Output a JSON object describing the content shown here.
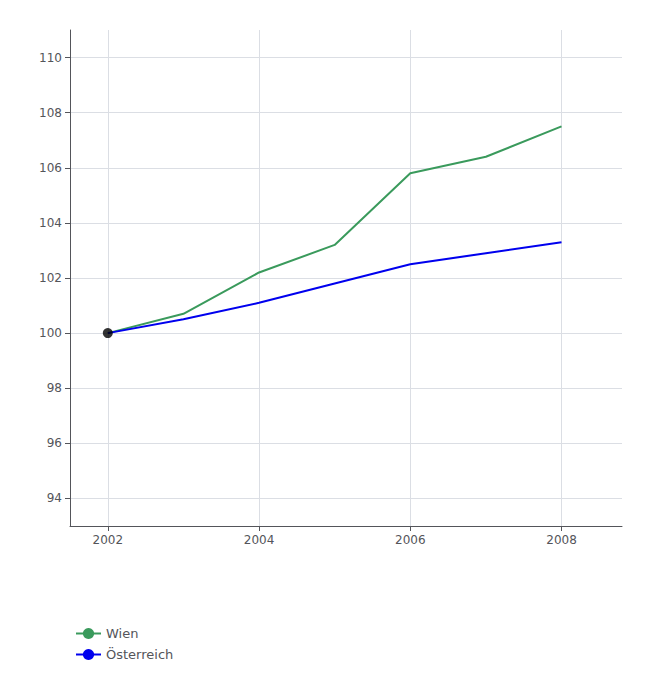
{
  "chart_data": {
    "type": "line",
    "series": [
      {
        "name": "Wien",
        "color": "#3a9a5c",
        "x": [
          2002,
          2003,
          2004,
          2005,
          2006,
          2007,
          2008
        ],
        "values": [
          100.0,
          100.7,
          102.2,
          103.2,
          105.8,
          106.4,
          107.5
        ]
      },
      {
        "name": "Österreich",
        "color": "#0000ee",
        "x": [
          2002,
          2003,
          2004,
          2005,
          2006,
          2007,
          2008
        ],
        "values": [
          100.0,
          100.5,
          101.1,
          101.8,
          102.5,
          102.9,
          103.3
        ]
      },
      {
        "type": "scatter",
        "marker": "circle",
        "color": "#000000",
        "x": [
          2002
        ],
        "values": [
          100
        ]
      }
    ],
    "xlim": [
      2001.5,
      2008.8
    ],
    "xticks": [
      2002,
      2004,
      2006,
      2008
    ],
    "ylim": [
      93.0,
      111.0
    ],
    "yticks": [
      94,
      96,
      98,
      100,
      102,
      104,
      106,
      108,
      110
    ],
    "grid": true,
    "legend": "bottom"
  }
}
